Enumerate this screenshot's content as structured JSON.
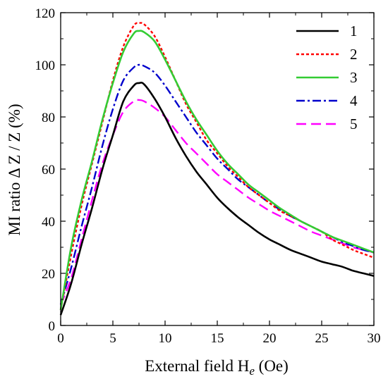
{
  "chart_data": {
    "type": "line",
    "title": "",
    "xlabel": "External field  H",
    "xlabel_sub": "e",
    "xlabel_unit": "  (Oe)",
    "ylabel": "MI ratio  Δ Z / Z  (%)",
    "xlim": [
      0,
      30
    ],
    "ylim": [
      0,
      120
    ],
    "x_ticks": [
      0,
      5,
      10,
      15,
      20,
      25,
      30
    ],
    "y_ticks": [
      0,
      20,
      40,
      60,
      80,
      100,
      120
    ],
    "x_tick_labels": [
      "0",
      "5",
      "10",
      "15",
      "20",
      "25",
      "30"
    ],
    "y_tick_labels": [
      "0",
      "20",
      "40",
      "60",
      "80",
      "100",
      "120"
    ],
    "grid": false,
    "legend_position": "top-right",
    "series": [
      {
        "name": "1",
        "color": "#000000",
        "dash": "solid",
        "x": [
          0,
          1,
          2,
          3,
          4,
          5,
          6,
          7,
          7.5,
          8,
          9,
          10,
          11,
          12,
          13,
          14,
          15,
          16,
          17,
          18,
          19,
          20,
          21,
          22,
          23,
          24,
          25,
          26,
          27,
          28,
          29,
          30
        ],
        "y": [
          4,
          16,
          31,
          45,
          60,
          73,
          86,
          92,
          93,
          92.5,
          87,
          80,
          72,
          65,
          59,
          54,
          49,
          45,
          41.5,
          38.5,
          35.5,
          33,
          31,
          29,
          27.5,
          26,
          24.5,
          23.5,
          22.5,
          21,
          20,
          19
        ]
      },
      {
        "name": "2",
        "color": "#ff0000",
        "dash": "dotted",
        "x": [
          0,
          1,
          2,
          3,
          4,
          5,
          6,
          7,
          7.5,
          8,
          9,
          10,
          11,
          12,
          13,
          14,
          15,
          16,
          17,
          18,
          19,
          20,
          21,
          22,
          23,
          24,
          25,
          26,
          27,
          28,
          29,
          30
        ],
        "y": [
          6,
          27,
          46,
          62,
          78,
          94,
          107,
          115,
          116,
          115.5,
          111,
          103,
          94,
          85,
          78,
          71,
          66,
          61,
          57,
          53,
          50,
          47,
          44,
          42,
          40,
          38,
          36,
          33,
          31,
          29,
          27.5,
          26
        ]
      },
      {
        "name": "3",
        "color": "#33cc33",
        "dash": "solid",
        "x": [
          0,
          1,
          2,
          3,
          4,
          5,
          6,
          7,
          7.5,
          8,
          9,
          10,
          11,
          12,
          13,
          14,
          15,
          16,
          17,
          18,
          19,
          20,
          21,
          22,
          23,
          24,
          25,
          26,
          27,
          28,
          29,
          30
        ],
        "y": [
          6,
          30,
          48,
          63,
          79,
          93,
          105,
          112,
          113,
          112.5,
          109,
          102,
          94,
          86,
          79,
          73,
          67,
          62,
          58,
          54,
          51,
          48,
          45,
          42.5,
          40,
          38,
          36,
          34,
          32.5,
          31,
          29.5,
          28
        ]
      },
      {
        "name": "4",
        "color": "#0000cc",
        "dash": "dashdot",
        "x": [
          0,
          1,
          2,
          3,
          4,
          5,
          6,
          7,
          7.5,
          8,
          9,
          10,
          11,
          12,
          13,
          14,
          15,
          16,
          17,
          18,
          19,
          20,
          21,
          22,
          23,
          24,
          25,
          26,
          27,
          28,
          29,
          30
        ],
        "y": [
          8,
          22,
          38,
          53,
          69,
          83,
          94,
          99,
          100,
          99.5,
          97,
          92,
          86,
          80,
          74,
          69,
          64,
          60,
          56,
          53,
          50,
          47,
          44.5,
          42,
          40,
          38,
          36,
          34,
          32,
          30.5,
          29,
          28
        ]
      },
      {
        "name": "5",
        "color": "#ff00ff",
        "dash": "dashed",
        "x": [
          0,
          1,
          2,
          3,
          4,
          5,
          6,
          7,
          7.5,
          8,
          9,
          10,
          11,
          12,
          13,
          14,
          15,
          16,
          17,
          18,
          19,
          20,
          21,
          22,
          23,
          24,
          25,
          26,
          27,
          28,
          29,
          30
        ],
        "y": [
          8,
          18,
          33,
          48,
          62,
          73,
          82,
          86,
          86.5,
          86,
          83.5,
          80,
          75,
          70,
          66,
          62,
          58,
          55,
          52,
          49,
          46.5,
          44,
          42,
          40,
          38,
          36,
          34.5,
          33,
          31.5,
          30,
          29,
          28
        ]
      }
    ]
  }
}
